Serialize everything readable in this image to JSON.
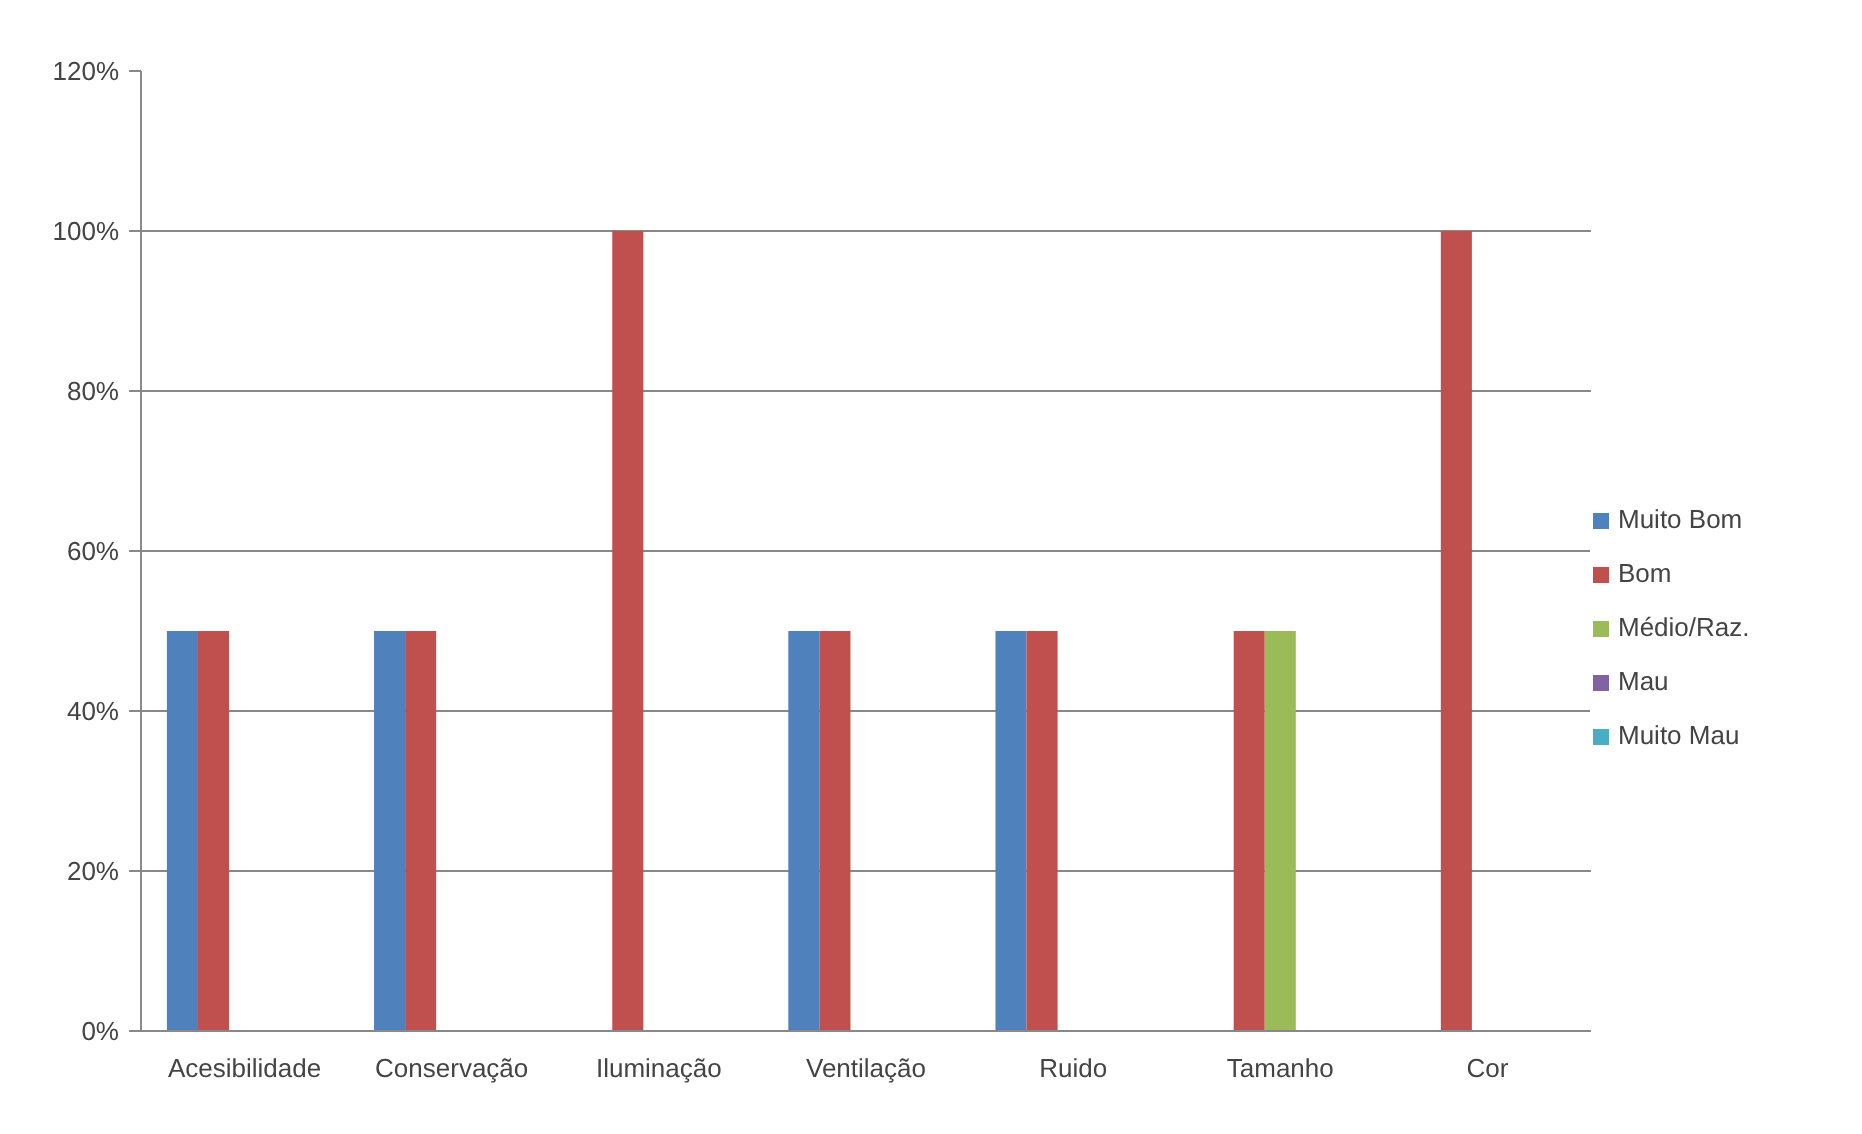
{
  "chart_data": {
    "type": "bar",
    "categories": [
      "Acesibilidade",
      "Conservação",
      "Iluminação",
      "Ventilação",
      "Ruido",
      "Tamanho",
      "Cor"
    ],
    "series": [
      {
        "name": "Muito Bom",
        "color": "#4f81bd",
        "values": [
          50,
          50,
          0,
          50,
          50,
          0,
          0
        ]
      },
      {
        "name": "Bom",
        "color": "#c0504d",
        "values": [
          50,
          50,
          100,
          50,
          50,
          50,
          100
        ]
      },
      {
        "name": "Médio/Raz.",
        "color": "#9bbb59",
        "values": [
          0,
          0,
          0,
          0,
          0,
          50,
          0
        ]
      },
      {
        "name": "Mau",
        "color": "#8064a2",
        "values": [
          0,
          0,
          0,
          0,
          0,
          0,
          0
        ]
      },
      {
        "name": "Muito Mau",
        "color": "#4bacc6",
        "values": [
          0,
          0,
          0,
          0,
          0,
          0,
          0
        ]
      }
    ],
    "ylim": [
      0,
      120
    ],
    "yticks": [
      {
        "value": 0,
        "label": "0%"
      },
      {
        "value": 20,
        "label": "20%"
      },
      {
        "value": 40,
        "label": "40%"
      },
      {
        "value": 60,
        "label": "60%"
      },
      {
        "value": 80,
        "label": "80%"
      },
      {
        "value": 100,
        "label": "100%"
      },
      {
        "value": 120,
        "label": "120%"
      }
    ],
    "grid": "y",
    "legend": "right"
  }
}
